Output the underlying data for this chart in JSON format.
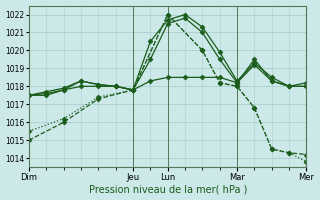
{
  "xlabel": "Pression niveau de la mer( hPa )",
  "background_color": "#cce8e8",
  "grid_color": "#aacfcf",
  "line_color": "#1a5c1a",
  "ylim": [
    1013.5,
    1022.5
  ],
  "yticks": [
    1014,
    1015,
    1016,
    1017,
    1018,
    1019,
    1020,
    1021,
    1022
  ],
  "xlim": [
    0,
    96
  ],
  "day_labels": [
    "Dim",
    "",
    "",
    "Jeu",
    "Lun",
    "",
    "Mar",
    "",
    "Mer"
  ],
  "day_positions": [
    0,
    12,
    24,
    36,
    48,
    60,
    72,
    84,
    96
  ],
  "day_tick_labels": [
    "Dim",
    "Jeu",
    "Lun",
    "Mar",
    "Mer"
  ],
  "day_tick_pos": [
    0,
    36,
    48,
    72,
    96
  ],
  "vline_positions": [
    0,
    36,
    48,
    72,
    96
  ],
  "series": [
    {
      "x": [
        0,
        6,
        12,
        18,
        24,
        30,
        36,
        42,
        48,
        54,
        60,
        66,
        72,
        78,
        84,
        90,
        96
      ],
      "y": [
        1017.5,
        1017.7,
        1017.9,
        1018.3,
        1018.1,
        1018.0,
        1017.8,
        1020.5,
        1021.7,
        1022.0,
        1021.3,
        1019.9,
        1018.3,
        1019.3,
        1018.5,
        1018.0,
        1018.2
      ],
      "style": "-",
      "marker": "D",
      "markersize": 2.5
    },
    {
      "x": [
        0,
        6,
        12,
        18,
        24,
        30,
        36,
        42,
        48,
        54,
        60,
        66,
        72,
        78,
        84,
        90,
        96
      ],
      "y": [
        1017.5,
        1017.6,
        1017.8,
        1018.3,
        1018.1,
        1018.0,
        1017.8,
        1019.5,
        1021.5,
        1021.8,
        1021.0,
        1019.5,
        1018.2,
        1019.5,
        1018.3,
        1018.0,
        1018.0
      ],
      "style": "-",
      "marker": "D",
      "markersize": 2.5
    },
    {
      "x": [
        0,
        6,
        12,
        18,
        24,
        30,
        36,
        42,
        48,
        54,
        60,
        66,
        72,
        78,
        84,
        90,
        96
      ],
      "y": [
        1017.5,
        1017.5,
        1017.8,
        1018.0,
        1018.0,
        1018.0,
        1017.8,
        1018.3,
        1018.5,
        1018.5,
        1018.5,
        1018.5,
        1018.2,
        1019.2,
        1018.3,
        1018.0,
        1018.0
      ],
      "style": "-",
      "marker": "D",
      "markersize": 2.5
    },
    {
      "x": [
        0,
        12,
        24,
        36,
        48,
        60,
        66,
        72,
        78,
        84,
        90,
        96
      ],
      "y": [
        1015.0,
        1016.0,
        1017.3,
        1017.8,
        1022.0,
        1020.0,
        1018.2,
        1018.0,
        1016.8,
        1014.5,
        1014.3,
        1014.2
      ],
      "style": "--",
      "marker": "D",
      "markersize": 2.5
    },
    {
      "x": [
        0,
        12,
        24,
        36,
        48,
        60,
        66,
        72,
        78,
        84,
        90,
        96
      ],
      "y": [
        1015.5,
        1016.2,
        1017.4,
        1017.8,
        1022.0,
        1020.0,
        1018.2,
        1018.0,
        1016.8,
        1014.5,
        1014.3,
        1013.8
      ],
      "style": ":",
      "marker": "D",
      "markersize": 2.5
    }
  ]
}
